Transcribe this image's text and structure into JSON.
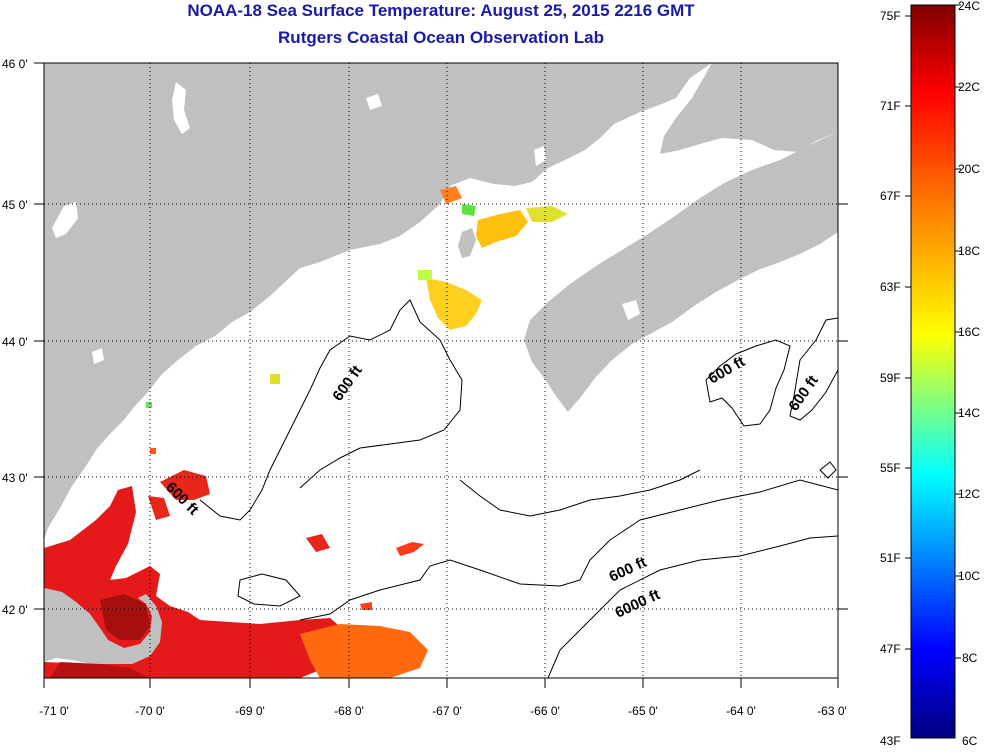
{
  "title_line1": "NOAA-18 Sea Surface Temperature:  August 25, 2015 2216 GMT",
  "title_line2": "Rutgers Coastal Ocean Observation Lab",
  "map": {
    "lon_ticks": [
      "-71 0'",
      "-70 0'",
      "-69 0'",
      "-68 0'",
      "-67 0'",
      "-66 0'",
      "-65 0'",
      "-64 0'",
      "-63 0'"
    ],
    "lat_ticks": [
      "46 0'",
      "45 0'",
      "44 0'",
      "43 0'",
      "42 0'"
    ],
    "contour_labels": [
      "600 ft",
      "600 ft",
      "600 ft",
      "600 ft",
      "600 ft",
      "6000 ft"
    ],
    "colors": {
      "land": "#c0c0c0",
      "ocean": "#ffffff",
      "grid": "#000000"
    }
  },
  "colorbar": {
    "fahrenheit": [
      "75F",
      "71F",
      "67F",
      "63F",
      "59F",
      "55F",
      "51F",
      "47F",
      "43F"
    ],
    "celsius": [
      "24C",
      "22C",
      "20C",
      "18C",
      "16C",
      "14C",
      "12C",
      "10C",
      "8C",
      "6C"
    ]
  }
}
